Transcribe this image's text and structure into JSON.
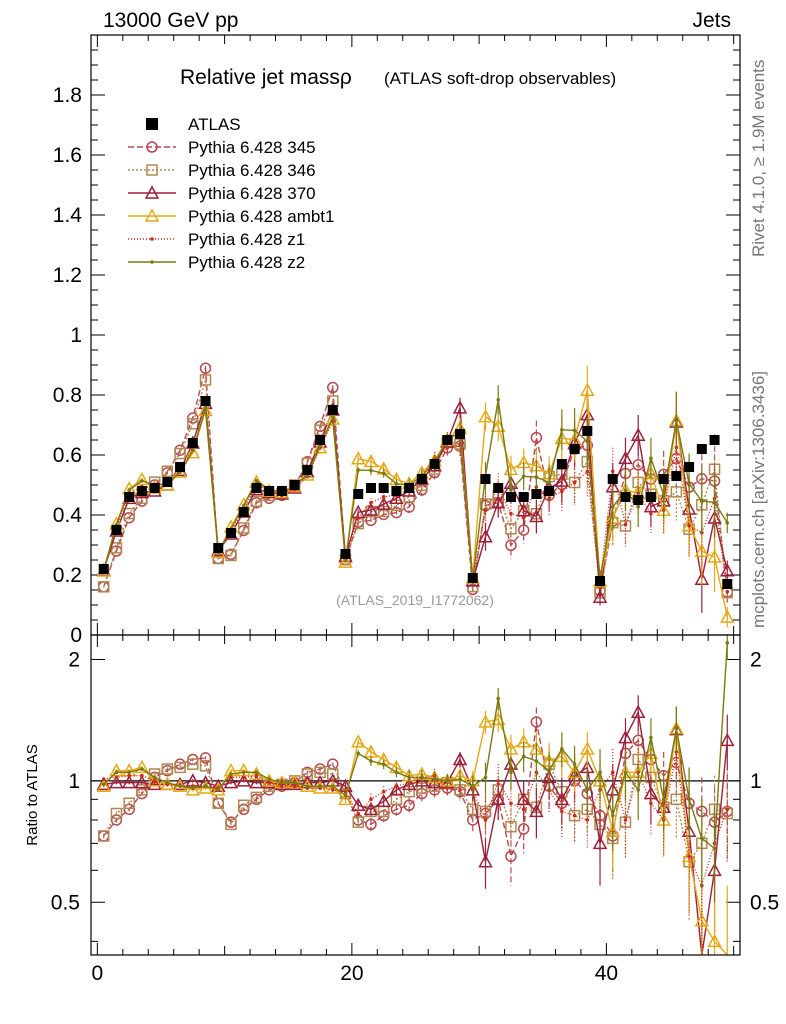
{
  "header": {
    "energy_label": "13000 GeV pp",
    "process_label": "Jets"
  },
  "side_labels": {
    "rivet": "Rivet 4.1.0, ≥ 1.9M events",
    "mcplots": "mcplots.cern.ch [arXiv:1306.3436]"
  },
  "chart_data": {
    "type": "scatter",
    "title": "Relative jet massρ",
    "subtitle": "(ATLAS soft-drop observables)",
    "watermark": "(ATLAS_2019_I1772062)",
    "xlabel": "",
    "ylabel_main": "",
    "ylabel_ratio": "Ratio to ATLAS",
    "xlim": [
      -0.5,
      50.5
    ],
    "ylim_main": [
      0,
      2.0
    ],
    "ylim_ratio": [
      0.37,
      2.3
    ],
    "ratio_scale": "log",
    "x_ticks": [
      "0",
      "20",
      "40"
    ],
    "y_ticks_main": [
      "0",
      "0.2",
      "0.4",
      "0.6",
      "0.8",
      "1",
      "1.2",
      "1.4",
      "1.6",
      "1.8"
    ],
    "y_ticks_ratio": [
      "0.5",
      "1",
      "2"
    ],
    "data": {
      "name": "ATLAS",
      "color": "#000000",
      "x": [
        0.5,
        1.5,
        2.5,
        3.5,
        4.5,
        5.5,
        6.5,
        7.5,
        8.5,
        9.5,
        10.5,
        11.5,
        12.5,
        13.5,
        14.5,
        15.5,
        16.5,
        17.5,
        18.5,
        19.5,
        20.5,
        21.5,
        22.5,
        23.5,
        24.5,
        25.5,
        26.5,
        27.5,
        28.5,
        29.5,
        30.5,
        31.5,
        32.5,
        33.5,
        34.5,
        35.5,
        36.5,
        37.5,
        38.5,
        39.5,
        40.5,
        41.5,
        42.5,
        43.5,
        44.5,
        45.5,
        46.5,
        47.5,
        48.5,
        49.5
      ],
      "y": [
        0.22,
        0.35,
        0.46,
        0.48,
        0.49,
        0.51,
        0.56,
        0.64,
        0.78,
        0.29,
        0.34,
        0.41,
        0.49,
        0.48,
        0.48,
        0.5,
        0.55,
        0.65,
        0.75,
        0.27,
        0.47,
        0.49,
        0.49,
        0.48,
        0.49,
        0.52,
        0.57,
        0.65,
        0.67,
        0.19,
        0.52,
        0.49,
        0.46,
        0.46,
        0.47,
        0.48,
        0.57,
        0.62,
        0.68,
        0.18,
        0.52,
        0.46,
        0.45,
        0.46,
        0.52,
        0.53,
        0.56,
        0.62,
        0.65,
        0.17
      ]
    },
    "series": [
      {
        "name": "Pythia 6.428 345",
        "color": "#b8484f",
        "marker": "circle",
        "dash": "6,3",
        "ratios": [
          0.73,
          0.8,
          0.85,
          0.93,
          1.02,
          1.06,
          1.1,
          1.13,
          1.14,
          0.88,
          0.79,
          0.85,
          0.9,
          0.95,
          0.97,
          0.99,
          1.05,
          1.07,
          1.1,
          0.93,
          0.8,
          0.78,
          0.82,
          0.85,
          0.87,
          0.93,
          0.95,
          0.96,
          0.94,
          0.8,
          0.83,
          0.9,
          0.65,
          0.76,
          1.4,
          0.97,
          0.88,
          1.0,
          0.93,
          0.82,
          0.73,
          1.17,
          1.26,
          1.13,
          1.03,
          1.11,
          0.88,
          0.84,
          0.79,
          0.84
        ],
        "errs": [
          0.01,
          0.01,
          0.01,
          0.01,
          0.01,
          0.01,
          0.01,
          0.01,
          0.01,
          0.01,
          0.01,
          0.01,
          0.01,
          0.01,
          0.01,
          0.01,
          0.01,
          0.01,
          0.01,
          0.02,
          0.02,
          0.03,
          0.03,
          0.03,
          0.04,
          0.04,
          0.04,
          0.04,
          0.05,
          0.06,
          0.09,
          0.1,
          0.1,
          0.1,
          0.12,
          0.12,
          0.12,
          0.12,
          0.12,
          0.15,
          0.15,
          0.15,
          0.15,
          0.15,
          0.15,
          0.18,
          0.18,
          0.18,
          0.18,
          0.2
        ]
      },
      {
        "name": "Pythia 6.428 346",
        "color": "#b08850",
        "marker": "square",
        "dash": "2,2",
        "ratios": [
          0.73,
          0.83,
          0.88,
          0.95,
          1.04,
          1.07,
          1.08,
          1.1,
          1.09,
          0.88,
          0.78,
          0.87,
          0.91,
          0.97,
          0.98,
          1.0,
          1.04,
          1.05,
          1.04,
          0.93,
          0.79,
          0.84,
          0.84,
          0.9,
          0.94,
          0.96,
          0.97,
          0.99,
          0.95,
          0.85,
          0.84,
          0.95,
          0.77,
          0.9,
          0.86,
          1.1,
          0.94,
          0.82,
          0.85,
          0.78,
          0.72,
          0.79,
          1.13,
          1.02,
          0.86,
          0.9,
          0.63,
          0.7,
          0.85,
          0.83
        ],
        "errs": [
          0.01,
          0.01,
          0.01,
          0.01,
          0.01,
          0.01,
          0.01,
          0.01,
          0.01,
          0.01,
          0.01,
          0.01,
          0.01,
          0.01,
          0.01,
          0.01,
          0.01,
          0.01,
          0.01,
          0.02,
          0.02,
          0.03,
          0.03,
          0.03,
          0.04,
          0.04,
          0.04,
          0.04,
          0.05,
          0.06,
          0.09,
          0.1,
          0.1,
          0.1,
          0.12,
          0.12,
          0.12,
          0.12,
          0.12,
          0.15,
          0.15,
          0.15,
          0.15,
          0.15,
          0.15,
          0.18,
          0.18,
          0.18,
          0.18,
          0.2
        ]
      },
      {
        "name": "Pythia 6.428 370",
        "color": "#9c1f3a",
        "marker": "triangle",
        "dash": "",
        "ratios": [
          0.98,
          0.99,
          0.99,
          0.99,
          0.98,
          0.98,
          0.98,
          1.0,
          0.99,
          0.97,
          0.99,
          1.0,
          0.99,
          0.99,
          0.98,
          0.98,
          0.99,
          0.99,
          1.0,
          0.97,
          0.87,
          0.85,
          0.89,
          0.95,
          0.98,
          1.0,
          0.99,
          0.99,
          1.13,
          0.95,
          0.63,
          0.9,
          1.1,
          0.9,
          0.84,
          1.02,
          0.9,
          1.03,
          1.08,
          0.7,
          0.95,
          1.28,
          1.48,
          0.93,
          0.86,
          1.34,
          0.75,
          0.3,
          0.6,
          1.26
        ],
        "errs": [
          0.01,
          0.01,
          0.01,
          0.01,
          0.01,
          0.01,
          0.01,
          0.01,
          0.01,
          0.01,
          0.01,
          0.01,
          0.01,
          0.01,
          0.01,
          0.01,
          0.01,
          0.01,
          0.01,
          0.02,
          0.02,
          0.03,
          0.03,
          0.03,
          0.04,
          0.04,
          0.04,
          0.04,
          0.05,
          0.06,
          0.09,
          0.1,
          0.1,
          0.1,
          0.12,
          0.12,
          0.12,
          0.12,
          0.12,
          0.15,
          0.15,
          0.15,
          0.15,
          0.15,
          0.15,
          0.18,
          0.18,
          0.18,
          0.18,
          0.2
        ]
      },
      {
        "name": "Pythia 6.428 ambt1",
        "color": "#e6a817",
        "marker": "triangle",
        "dash": "",
        "ratios": [
          0.97,
          1.06,
          1.06,
          1.08,
          1.0,
          0.98,
          0.97,
          0.95,
          0.96,
          0.95,
          1.06,
          1.06,
          1.04,
          1.0,
          0.99,
          0.99,
          0.97,
          0.96,
          0.96,
          0.9,
          1.25,
          1.18,
          1.13,
          1.08,
          1.03,
          1.04,
          1.02,
          1.0,
          1.03,
          1.0,
          1.4,
          1.42,
          1.2,
          1.25,
          1.2,
          1.12,
          1.15,
          1.05,
          1.2,
          1.0,
          0.75,
          1.05,
          1.05,
          1.17,
          0.8,
          1.35,
          0.65,
          0.45,
          0.4,
          0.35
        ],
        "errs": [
          0.01,
          0.01,
          0.01,
          0.01,
          0.01,
          0.01,
          0.01,
          0.01,
          0.01,
          0.01,
          0.01,
          0.01,
          0.01,
          0.01,
          0.01,
          0.01,
          0.01,
          0.01,
          0.01,
          0.02,
          0.02,
          0.03,
          0.03,
          0.03,
          0.04,
          0.04,
          0.04,
          0.04,
          0.05,
          0.06,
          0.09,
          0.1,
          0.1,
          0.1,
          0.12,
          0.12,
          0.12,
          0.12,
          0.12,
          0.15,
          0.15,
          0.15,
          0.15,
          0.15,
          0.15,
          0.18,
          0.18,
          0.18,
          0.18,
          0.2
        ]
      },
      {
        "name": "Pythia 6.428 z1",
        "color": "#cc2a1a",
        "marker": "dot",
        "dash": "1,2",
        "ratios": [
          1.01,
          1.02,
          1.03,
          1.03,
          1.0,
          0.98,
          0.97,
          0.97,
          0.97,
          0.96,
          1.02,
          1.02,
          1.03,
          0.99,
          0.97,
          0.97,
          0.96,
          0.96,
          0.95,
          0.94,
          0.83,
          0.9,
          0.94,
          0.97,
          0.99,
          1.02,
          1.03,
          0.96,
          0.95,
          0.95,
          0.8,
          1.0,
          0.88,
          0.85,
          1.05,
          0.95,
          0.84,
          0.82,
          0.8,
          0.95,
          1.05,
          0.8,
          1.05,
          0.88,
          0.8,
          1.18,
          0.65,
          0.55,
          0.7,
          0.85
        ],
        "errs": [
          0.01,
          0.01,
          0.01,
          0.01,
          0.01,
          0.01,
          0.01,
          0.01,
          0.01,
          0.01,
          0.01,
          0.01,
          0.01,
          0.01,
          0.01,
          0.01,
          0.01,
          0.01,
          0.01,
          0.02,
          0.02,
          0.03,
          0.03,
          0.03,
          0.04,
          0.04,
          0.04,
          0.04,
          0.05,
          0.06,
          0.09,
          0.1,
          0.1,
          0.1,
          0.12,
          0.12,
          0.12,
          0.12,
          0.12,
          0.15,
          0.15,
          0.15,
          0.15,
          0.15,
          0.15,
          0.18,
          0.18,
          0.18,
          0.18,
          0.2
        ]
      },
      {
        "name": "Pythia 6.428 z2",
        "color": "#7a7a10",
        "marker": "dot",
        "dash": "",
        "ratios": [
          0.98,
          1.05,
          1.05,
          1.07,
          1.02,
          0.99,
          0.97,
          0.96,
          0.97,
          0.95,
          1.04,
          1.05,
          1.05,
          1.01,
          0.99,
          0.99,
          0.97,
          0.97,
          0.97,
          0.92,
          1.17,
          1.12,
          1.1,
          1.05,
          1.02,
          1.02,
          1.01,
          1.0,
          1.01,
          0.97,
          1.02,
          1.6,
          1.05,
          1.15,
          1.12,
          1.06,
          1.2,
          1.1,
          0.95,
          1.05,
          0.82,
          1.05,
          0.95,
          1.28,
          0.9,
          1.35,
          0.9,
          0.72,
          0.68,
          2.2
        ],
        "errs": [
          0.01,
          0.01,
          0.01,
          0.01,
          0.01,
          0.01,
          0.01,
          0.01,
          0.01,
          0.01,
          0.01,
          0.01,
          0.01,
          0.01,
          0.01,
          0.01,
          0.01,
          0.01,
          0.01,
          0.02,
          0.02,
          0.03,
          0.03,
          0.03,
          0.04,
          0.04,
          0.04,
          0.04,
          0.05,
          0.06,
          0.09,
          0.1,
          0.1,
          0.1,
          0.12,
          0.12,
          0.12,
          0.12,
          0.12,
          0.15,
          0.15,
          0.15,
          0.15,
          0.15,
          0.15,
          0.18,
          0.18,
          0.18,
          0.18,
          0.2
        ]
      }
    ]
  }
}
